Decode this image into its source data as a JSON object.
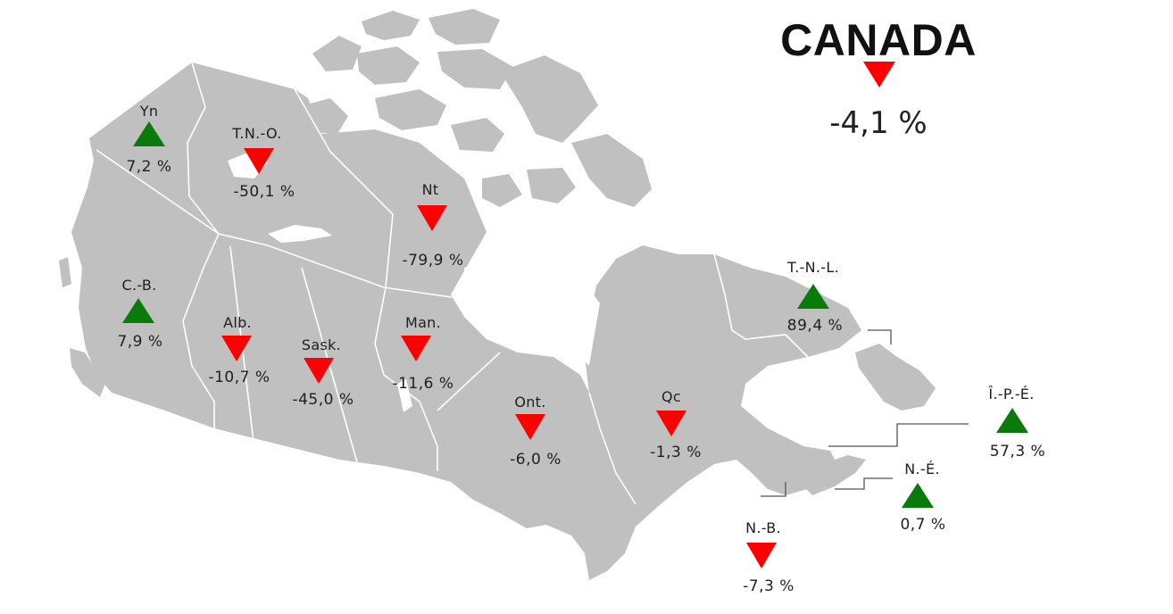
{
  "national": {
    "title": "CANADA",
    "value": "-4,1 %",
    "trend": "down"
  },
  "regions": [
    {
      "id": "yn",
      "label": "Yn",
      "value": "7,2 %",
      "trend": "up"
    },
    {
      "id": "tno",
      "label": "T.N.-O.",
      "value": "-50,1 %",
      "trend": "down"
    },
    {
      "id": "nt",
      "label": "Nt",
      "value": "-79,9 %",
      "trend": "down"
    },
    {
      "id": "cb",
      "label": "C.-B.",
      "value": "7,9 %",
      "trend": "up"
    },
    {
      "id": "alb",
      "label": "Alb.",
      "value": "-10,7 %",
      "trend": "down"
    },
    {
      "id": "sask",
      "label": "Sask.",
      "value": "-45,0 %",
      "trend": "down"
    },
    {
      "id": "man",
      "label": "Man.",
      "value": "-11,6 %",
      "trend": "down"
    },
    {
      "id": "ont",
      "label": "Ont.",
      "value": "-6,0 %",
      "trend": "down"
    },
    {
      "id": "qc",
      "label": "Qc",
      "value": "-1,3 %",
      "trend": "down"
    },
    {
      "id": "tnl",
      "label": "T.-N.-L.",
      "value": "89,4 %",
      "trend": "up"
    },
    {
      "id": "ipe",
      "label": "Î.-P.-É.",
      "value": "57,3 %",
      "trend": "up"
    },
    {
      "id": "ne",
      "label": "N.-É.",
      "value": "0,7 %",
      "trend": "up"
    },
    {
      "id": "nb",
      "label": "N.-B.",
      "value": "-7,3 %",
      "trend": "down"
    }
  ],
  "colors": {
    "land": "#c0c0c0",
    "border": "#ffffff",
    "increase": "#0a7a0a",
    "decrease": "#ff0000"
  }
}
